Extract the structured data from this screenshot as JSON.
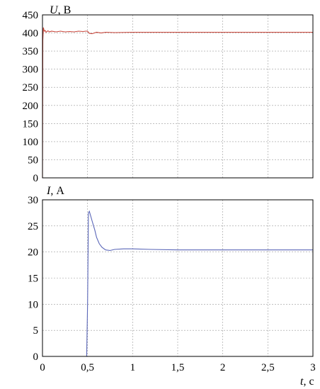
{
  "chart_data": [
    {
      "type": "line",
      "ylabel_symbol": "U",
      "ylabel_unit": ", В",
      "xlim": [
        0,
        3
      ],
      "ylim": [
        0,
        450
      ],
      "yticks": [
        "0",
        "50",
        "100",
        "150",
        "200",
        "250",
        "300",
        "350",
        "400",
        "450"
      ],
      "grid": true,
      "series": [
        {
          "color": "#c8473c",
          "x": [
            0,
            0.004,
            0.01,
            0.02,
            0.03,
            0.04,
            0.06,
            0.08,
            0.1,
            0.15,
            0.2,
            0.25,
            0.3,
            0.35,
            0.4,
            0.45,
            0.48,
            0.5,
            0.52,
            0.55,
            0.6,
            0.65,
            0.7,
            0.8,
            1.0,
            1.5,
            2.0,
            2.5,
            3.0
          ],
          "y": [
            0,
            380,
            415,
            405,
            407,
            402,
            406,
            403,
            405,
            403,
            405,
            403,
            404,
            403,
            405,
            404,
            405,
            405,
            399,
            398,
            402,
            400,
            402,
            401,
            402,
            402,
            402,
            402,
            402
          ]
        }
      ]
    },
    {
      "type": "line",
      "ylabel_symbol": "I",
      "ylabel_unit": ", А",
      "xlabel_symbol": "t",
      "xlabel_unit": ", с",
      "xlim": [
        0,
        3
      ],
      "ylim": [
        0,
        30
      ],
      "xticks": [
        "0",
        "0,5",
        "1",
        "1,5",
        "2",
        "2,5",
        "3"
      ],
      "yticks": [
        "0",
        "5",
        "10",
        "15",
        "20",
        "25",
        "30"
      ],
      "grid": true,
      "series": [
        {
          "color": "#5a66b8",
          "x": [
            0,
            0.49,
            0.5,
            0.51,
            0.52,
            0.55,
            0.58,
            0.6,
            0.63,
            0.66,
            0.7,
            0.75,
            0.8,
            0.9,
            1.0,
            1.2,
            1.5,
            2.0,
            2.5,
            3.0
          ],
          "y": [
            0,
            0,
            10,
            27.5,
            27.8,
            26.0,
            24.2,
            22.8,
            21.6,
            20.9,
            20.4,
            20.3,
            20.5,
            20.6,
            20.6,
            20.5,
            20.4,
            20.4,
            20.4,
            20.4
          ]
        }
      ]
    }
  ]
}
